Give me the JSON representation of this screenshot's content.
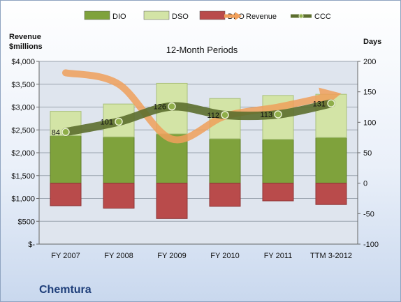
{
  "chart_data": {
    "type": "bar",
    "title": "12-Month Periods",
    "company": "Chemtura",
    "left_axis_title": [
      "Revenue",
      "$millions"
    ],
    "right_axis_title": "Days",
    "categories": [
      "FY 2007",
      "FY 2008",
      "FY 2009",
      "FY 2010",
      "FY 2011",
      "TTM 3-2012"
    ],
    "left_ticks": [
      "$-",
      "$500",
      "$1,000",
      "$1,500",
      "$2,000",
      "$2,500",
      "$3,000",
      "$3,500",
      "$4,000"
    ],
    "right_ticks": [
      "-100",
      "-50",
      "0",
      "50",
      "100",
      "150",
      "200"
    ],
    "left_ylim": [
      0,
      4000
    ],
    "right_ylim": [
      -100,
      200
    ],
    "grid": true,
    "legend_position": "top",
    "series": [
      {
        "name": "DIO",
        "kind": "stacked-bar",
        "axis": "right",
        "color": "#7fa23c",
        "values": [
          78,
          76,
          81,
          73,
          72,
          75
        ]
      },
      {
        "name": "DSO",
        "kind": "stacked-bar",
        "axis": "right",
        "color": "#d3e4a6",
        "values": [
          40,
          54,
          83,
          66,
          72,
          71
        ]
      },
      {
        "name": "DPO",
        "kind": "negative-bar",
        "axis": "right",
        "color": "#b94b4b",
        "values": [
          -37,
          -41,
          -58,
          -38,
          -29,
          -35
        ]
      },
      {
        "name": "Revenue",
        "kind": "line",
        "axis": "left",
        "color": "#f0a05c",
        "values": [
          3750,
          3500,
          2300,
          2800,
          3000,
          3250
        ]
      },
      {
        "name": "CCC",
        "kind": "line-markers",
        "axis": "right",
        "color": "#5c6e2e",
        "values": [
          84,
          101,
          126,
          112,
          113,
          131
        ],
        "labels": [
          "84",
          "101",
          "126",
          "112",
          "113",
          "131"
        ]
      }
    ]
  }
}
